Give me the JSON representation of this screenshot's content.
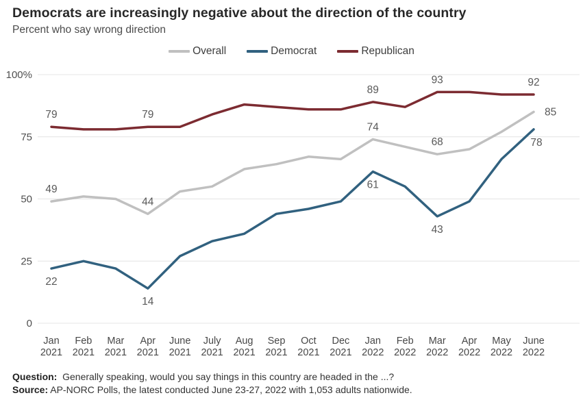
{
  "header": {
    "title": "Democrats are increasingly negative about the direction of the country",
    "subtitle": "Percent who say wrong direction"
  },
  "chart_data": {
    "type": "line",
    "title": "Democrats are increasingly negative about the direction of the country",
    "subtitle": "Percent who say wrong direction",
    "legend_position": "top",
    "grid": true,
    "categories": [
      "Jan 2021",
      "Feb 2021",
      "Mar 2021",
      "Apr 2021",
      "June 2021",
      "July 2021",
      "Aug 2021",
      "Sep 2021",
      "Oct 2021",
      "Dec 2021",
      "Jan 2022",
      "Feb 2022",
      "Mar 2022",
      "Apr 2022",
      "May 2022",
      "June 2022"
    ],
    "y_axis": {
      "range": [
        0,
        100
      ],
      "ticks": [
        0,
        25,
        50,
        75,
        100
      ],
      "tick_labels": [
        "0",
        "25",
        "50",
        "75",
        "100%"
      ]
    },
    "series": [
      {
        "name": "Overall",
        "color": "#c0c0c0",
        "values": [
          49,
          51,
          50,
          44,
          53,
          55,
          62,
          64,
          67,
          66,
          74,
          71,
          68,
          70,
          77,
          85
        ],
        "point_labels": [
          {
            "index": 0,
            "text": "49",
            "pos": "above"
          },
          {
            "index": 3,
            "text": "44",
            "pos": "above"
          },
          {
            "index": 10,
            "text": "74",
            "pos": "above"
          },
          {
            "index": 12,
            "text": "68",
            "pos": "above"
          },
          {
            "index": 15,
            "text": "85",
            "pos": "right"
          }
        ]
      },
      {
        "name": "Democrat",
        "color": "#31617f",
        "values": [
          22,
          25,
          22,
          14,
          27,
          33,
          36,
          44,
          46,
          49,
          61,
          55,
          43,
          49,
          66,
          78
        ],
        "point_labels": [
          {
            "index": 0,
            "text": "22",
            "pos": "below"
          },
          {
            "index": 3,
            "text": "14",
            "pos": "below"
          },
          {
            "index": 10,
            "text": "61",
            "pos": "below"
          },
          {
            "index": 12,
            "text": "43",
            "pos": "below"
          },
          {
            "index": 15,
            "text": "78",
            "pos": "below",
            "dx": 4
          }
        ]
      },
      {
        "name": "Republican",
        "color": "#7c2b31",
        "values": [
          79,
          78,
          78,
          79,
          79,
          84,
          88,
          87,
          86,
          86,
          89,
          87,
          93,
          93,
          92,
          92
        ],
        "point_labels": [
          {
            "index": 0,
            "text": "79",
            "pos": "above"
          },
          {
            "index": 3,
            "text": "79",
            "pos": "above"
          },
          {
            "index": 10,
            "text": "89",
            "pos": "above"
          },
          {
            "index": 12,
            "text": "93",
            "pos": "above"
          },
          {
            "index": 15,
            "text": "92",
            "pos": "above"
          }
        ]
      }
    ]
  },
  "footer": {
    "question_label": "Question:",
    "question_text": "Generally speaking, would you say things in this country are headed in the ...?",
    "source_label": "Source:",
    "source_text": "AP-NORC Polls, the latest conducted June 23-27, 2022 with 1,053 adults nationwide."
  }
}
